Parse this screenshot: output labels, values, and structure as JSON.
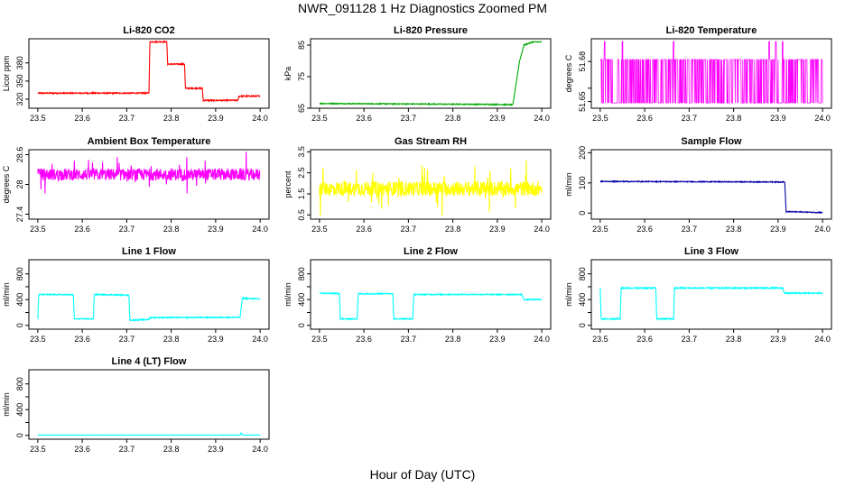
{
  "title": "NWR_091128  1 Hz Diagnostics Zoomed PM",
  "xlabel": "Hour of Day (UTC)",
  "chart_data": [
    {
      "type": "line",
      "title": "Li-820 CO2",
      "ylabel": "Licor ppm",
      "color": "#ff0000",
      "x": [
        23.5,
        23.75,
        23.752,
        23.79,
        23.792,
        23.83,
        23.832,
        23.87,
        23.872,
        23.95,
        23.952,
        24.0
      ],
      "values": [
        330,
        330,
        415,
        415,
        378,
        378,
        338,
        338,
        318,
        318,
        325,
        325
      ],
      "noise": 1,
      "ylim": [
        305,
        420
      ],
      "yticks": [
        320,
        350,
        380
      ],
      "xticks": [
        23.5,
        23.6,
        23.7,
        23.8,
        23.9,
        24.0
      ]
    },
    {
      "type": "line",
      "title": "Li-820 Pressure",
      "ylabel": "kPa",
      "color": "#00aa00",
      "x": [
        23.5,
        23.905,
        23.935,
        23.95,
        23.96,
        23.98,
        24.0
      ],
      "values": [
        66.5,
        66.2,
        66.1,
        80,
        85,
        86,
        86
      ],
      "noise": 0.15,
      "ylim": [
        65,
        87
      ],
      "yticks": [
        65,
        75,
        85
      ],
      "xticks": [
        23.5,
        23.6,
        23.7,
        23.8,
        23.9,
        24.0
      ]
    },
    {
      "type": "line",
      "title": "Li-820 Temperature",
      "ylabel": "degrees C",
      "color": "#ff00ff",
      "pattern": "binary",
      "low": 51.649,
      "high": 51.6815,
      "spikes": [
        23.51,
        23.55,
        23.665,
        23.88,
        23.895,
        23.91
      ],
      "spike_value": 51.695,
      "ylim": [
        51.645,
        51.697
      ],
      "yticks": [
        51.65,
        51.66,
        51.68
      ],
      "ytick_labels": [
        "51.65",
        "",
        "51.68"
      ],
      "xticks": [
        23.5,
        23.6,
        23.7,
        23.8,
        23.9,
        24.0
      ]
    },
    {
      "type": "line",
      "title": "Ambient Box Temperature",
      "ylabel": "degrees C",
      "color": "#ff00ff",
      "x": [
        23.5,
        24.0
      ],
      "values": [
        28.2,
        28.2
      ],
      "noise": 0.12,
      "spike_noise": 0.35,
      "ylim": [
        27.3,
        28.7
      ],
      "yticks": [
        27.4,
        28.0,
        28.6
      ],
      "xticks": [
        23.5,
        23.6,
        23.7,
        23.8,
        23.9,
        24.0
      ]
    },
    {
      "type": "line",
      "title": "Gas Stream RH",
      "ylabel": "percent",
      "color": "#ffff00",
      "x": [
        23.5,
        24.0
      ],
      "values": [
        1.75,
        1.75
      ],
      "noise": 0.35,
      "spike_noise": 1.1,
      "ylim": [
        0.3,
        3.6
      ],
      "yticks": [
        0.5,
        1.5,
        2.5,
        3.5
      ],
      "ytick_labels": [
        "0.5",
        "1.5",
        "2.5",
        "3.5"
      ],
      "xticks": [
        23.5,
        23.6,
        23.7,
        23.8,
        23.9,
        24.0
      ]
    },
    {
      "type": "line",
      "title": "Sample Flow",
      "ylabel": "ml/min",
      "color": "#0000aa",
      "x": [
        23.5,
        23.915,
        23.918,
        24.0
      ],
      "values": [
        105,
        103,
        5,
        2
      ],
      "noise": 1.5,
      "ylim": [
        -20,
        210
      ],
      "yticks": [
        0,
        100,
        200
      ],
      "xticks": [
        23.5,
        23.6,
        23.7,
        23.8,
        23.9,
        24.0
      ]
    },
    {
      "type": "line",
      "title": "Line 1 Flow",
      "ylabel": "ml/min",
      "color": "#00ffff",
      "x": [
        23.5,
        23.502,
        23.58,
        23.582,
        23.625,
        23.627,
        23.705,
        23.707,
        23.75,
        23.752,
        23.955,
        23.96,
        24.0
      ],
      "values": [
        100,
        480,
        475,
        100,
        100,
        480,
        470,
        80,
        90,
        120,
        125,
        420,
        410
      ],
      "noise": 8,
      "ylim": [
        -60,
        1020
      ],
      "yticks": [
        0,
        400,
        800
      ],
      "yticks_all": [
        0,
        200,
        400,
        600,
        800
      ],
      "xticks": [
        23.5,
        23.6,
        23.7,
        23.8,
        23.9,
        24.0
      ]
    },
    {
      "type": "line",
      "title": "Line 2 Flow",
      "ylabel": "ml/min",
      "color": "#00ffff",
      "x": [
        23.5,
        23.545,
        23.547,
        23.585,
        23.587,
        23.665,
        23.667,
        23.71,
        23.712,
        23.955,
        23.96,
        24.0
      ],
      "values": [
        500,
        495,
        100,
        100,
        490,
        495,
        100,
        100,
        480,
        480,
        400,
        400
      ],
      "noise": 8,
      "ylim": [
        -60,
        1020
      ],
      "yticks": [
        0,
        400,
        800
      ],
      "yticks_all": [
        0,
        200,
        400,
        600,
        800
      ],
      "xticks": [
        23.5,
        23.6,
        23.7,
        23.8,
        23.9,
        24.0
      ]
    },
    {
      "type": "line",
      "title": "Line 3 Flow",
      "ylabel": "ml/min",
      "color": "#00ffff",
      "x": [
        23.5,
        23.502,
        23.545,
        23.547,
        23.625,
        23.627,
        23.665,
        23.667,
        23.91,
        23.915,
        24.0
      ],
      "values": [
        580,
        100,
        100,
        580,
        580,
        100,
        100,
        580,
        580,
        500,
        500
      ],
      "noise": 10,
      "ylim": [
        -60,
        1020
      ],
      "yticks": [
        0,
        400,
        800
      ],
      "yticks_all": [
        0,
        200,
        400,
        600,
        800
      ],
      "xticks": [
        23.5,
        23.6,
        23.7,
        23.8,
        23.9,
        24.0
      ]
    },
    {
      "type": "line",
      "title": "Line 4 (LT) Flow",
      "ylabel": "ml/min",
      "color": "#00ffff",
      "x": [
        23.5,
        23.955,
        23.957,
        23.96,
        23.962,
        24.0
      ],
      "values": [
        5,
        5,
        40,
        10,
        5,
        5
      ],
      "noise": 0.8,
      "ylim": [
        -60,
        1020
      ],
      "yticks": [
        0,
        400,
        800
      ],
      "yticks_all": [
        0,
        200,
        400,
        600,
        800
      ],
      "xticks": [
        23.5,
        23.6,
        23.7,
        23.8,
        23.9,
        24.0
      ]
    }
  ]
}
